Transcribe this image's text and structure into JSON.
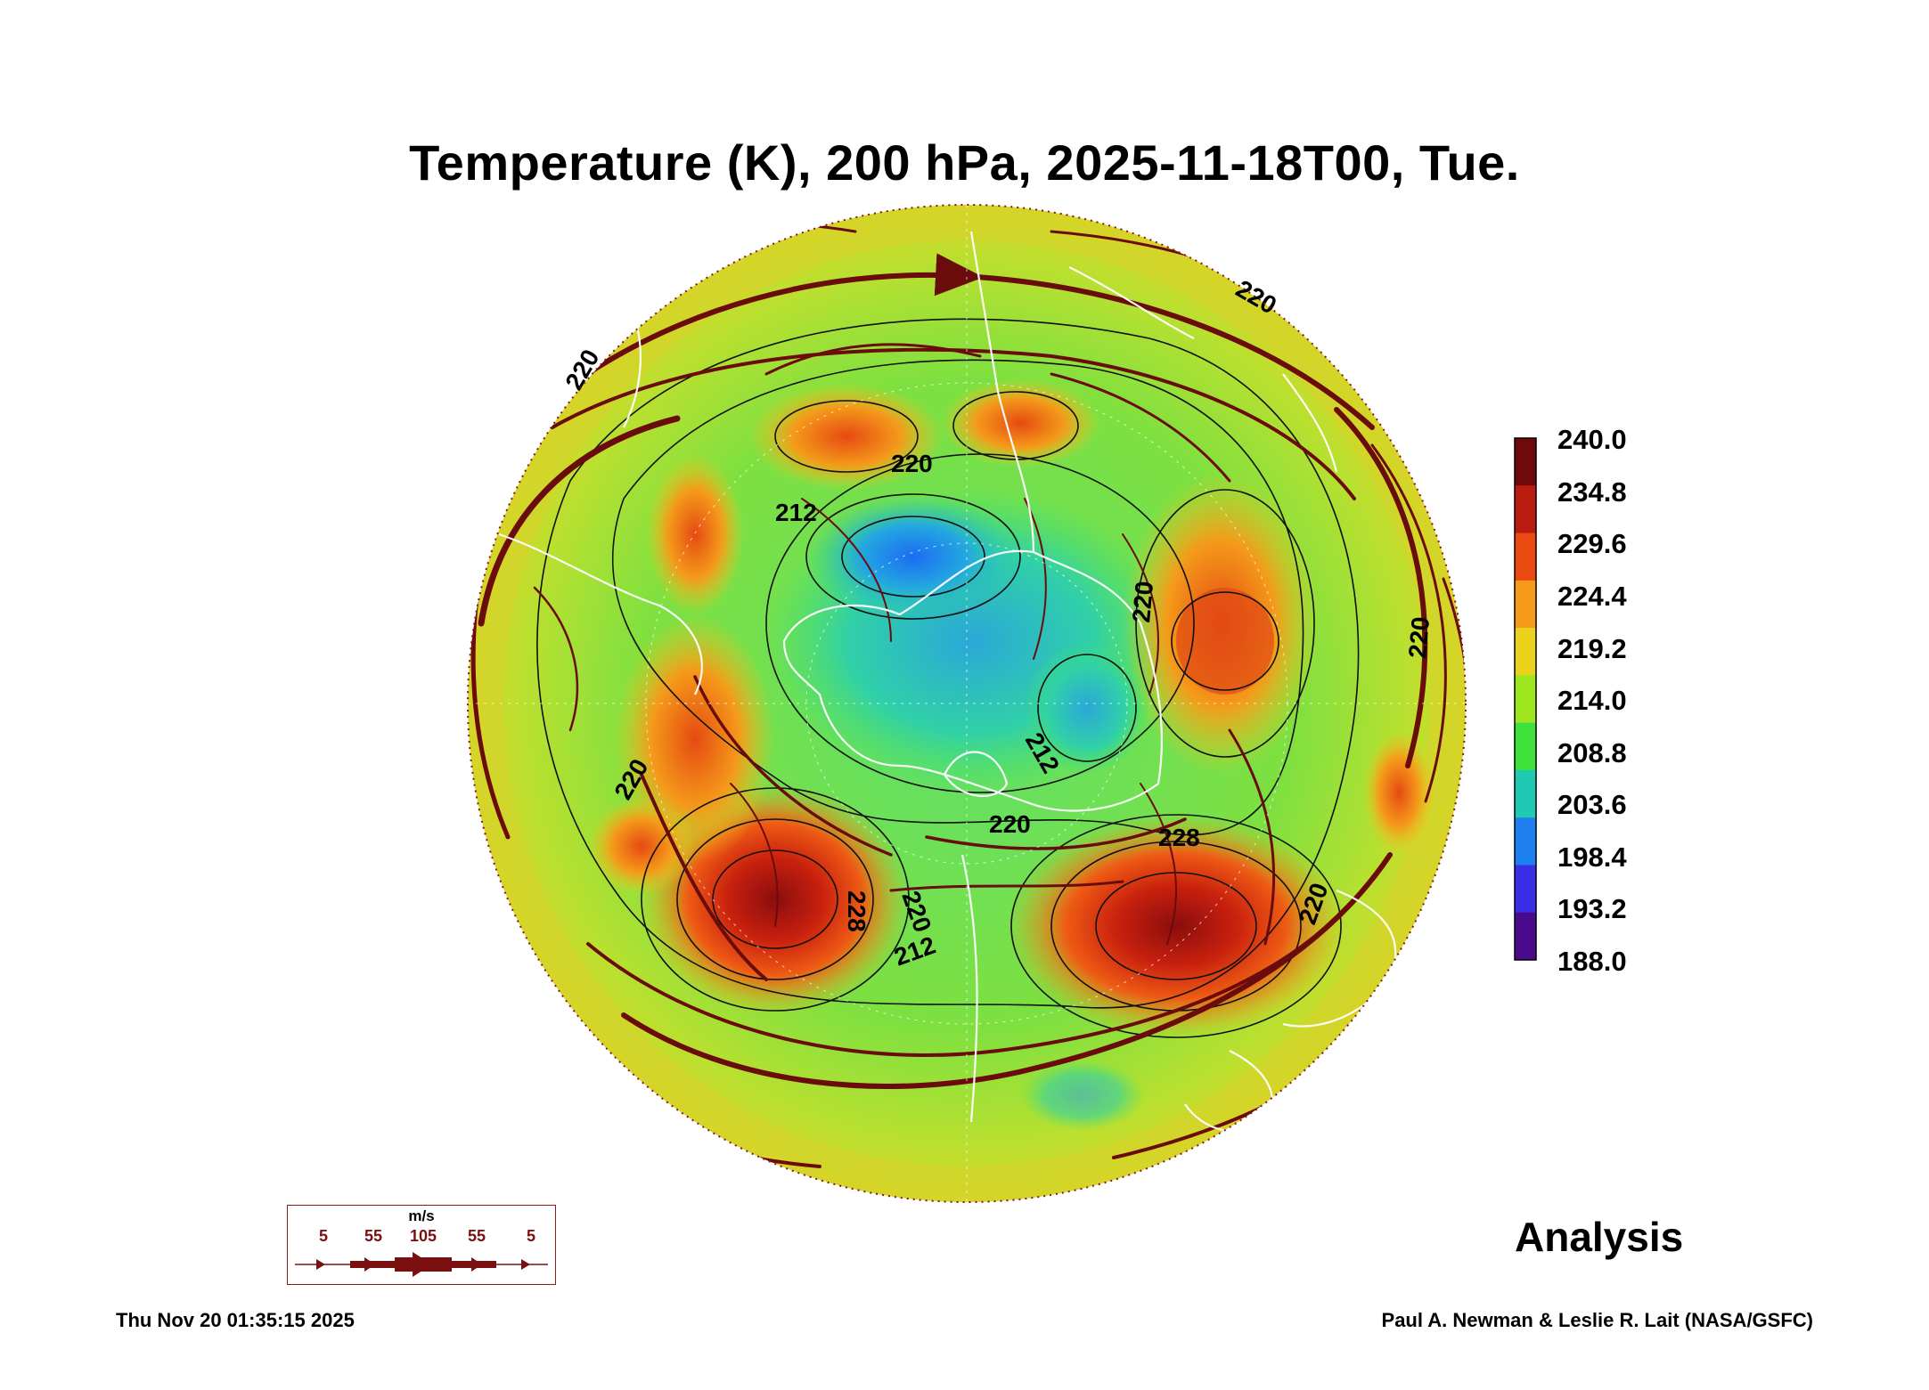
{
  "title": "Temperature (K), 200 hPa, 2025-11-18T00, Tue.",
  "colorbar": {
    "labels": [
      "240.0",
      "234.8",
      "229.6",
      "224.4",
      "219.2",
      "214.0",
      "208.8",
      "203.6",
      "198.4",
      "193.2",
      "188.0"
    ],
    "colors": [
      "#6e0a0a",
      "#b81c10",
      "#e84a12",
      "#f79a1c",
      "#e8d21c",
      "#9de620",
      "#3ee03c",
      "#20c9b4",
      "#1e80f0",
      "#3a2ee8",
      "#4a0a8c"
    ]
  },
  "contour_labels": [
    "212",
    "220",
    "228",
    "220",
    "212",
    "220",
    "228",
    "220",
    "212",
    "220",
    "220",
    "220",
    "220",
    "220"
  ],
  "vector_legend": {
    "unit": "m/s",
    "values": [
      "5",
      "55",
      "105",
      "55",
      "5"
    ]
  },
  "product_label": "Analysis",
  "timestamp": "Thu Nov 20 01:35:15 2025",
  "credit": "Paul A. Newman & Leslie R. Lait (NASA/GSFC)"
}
